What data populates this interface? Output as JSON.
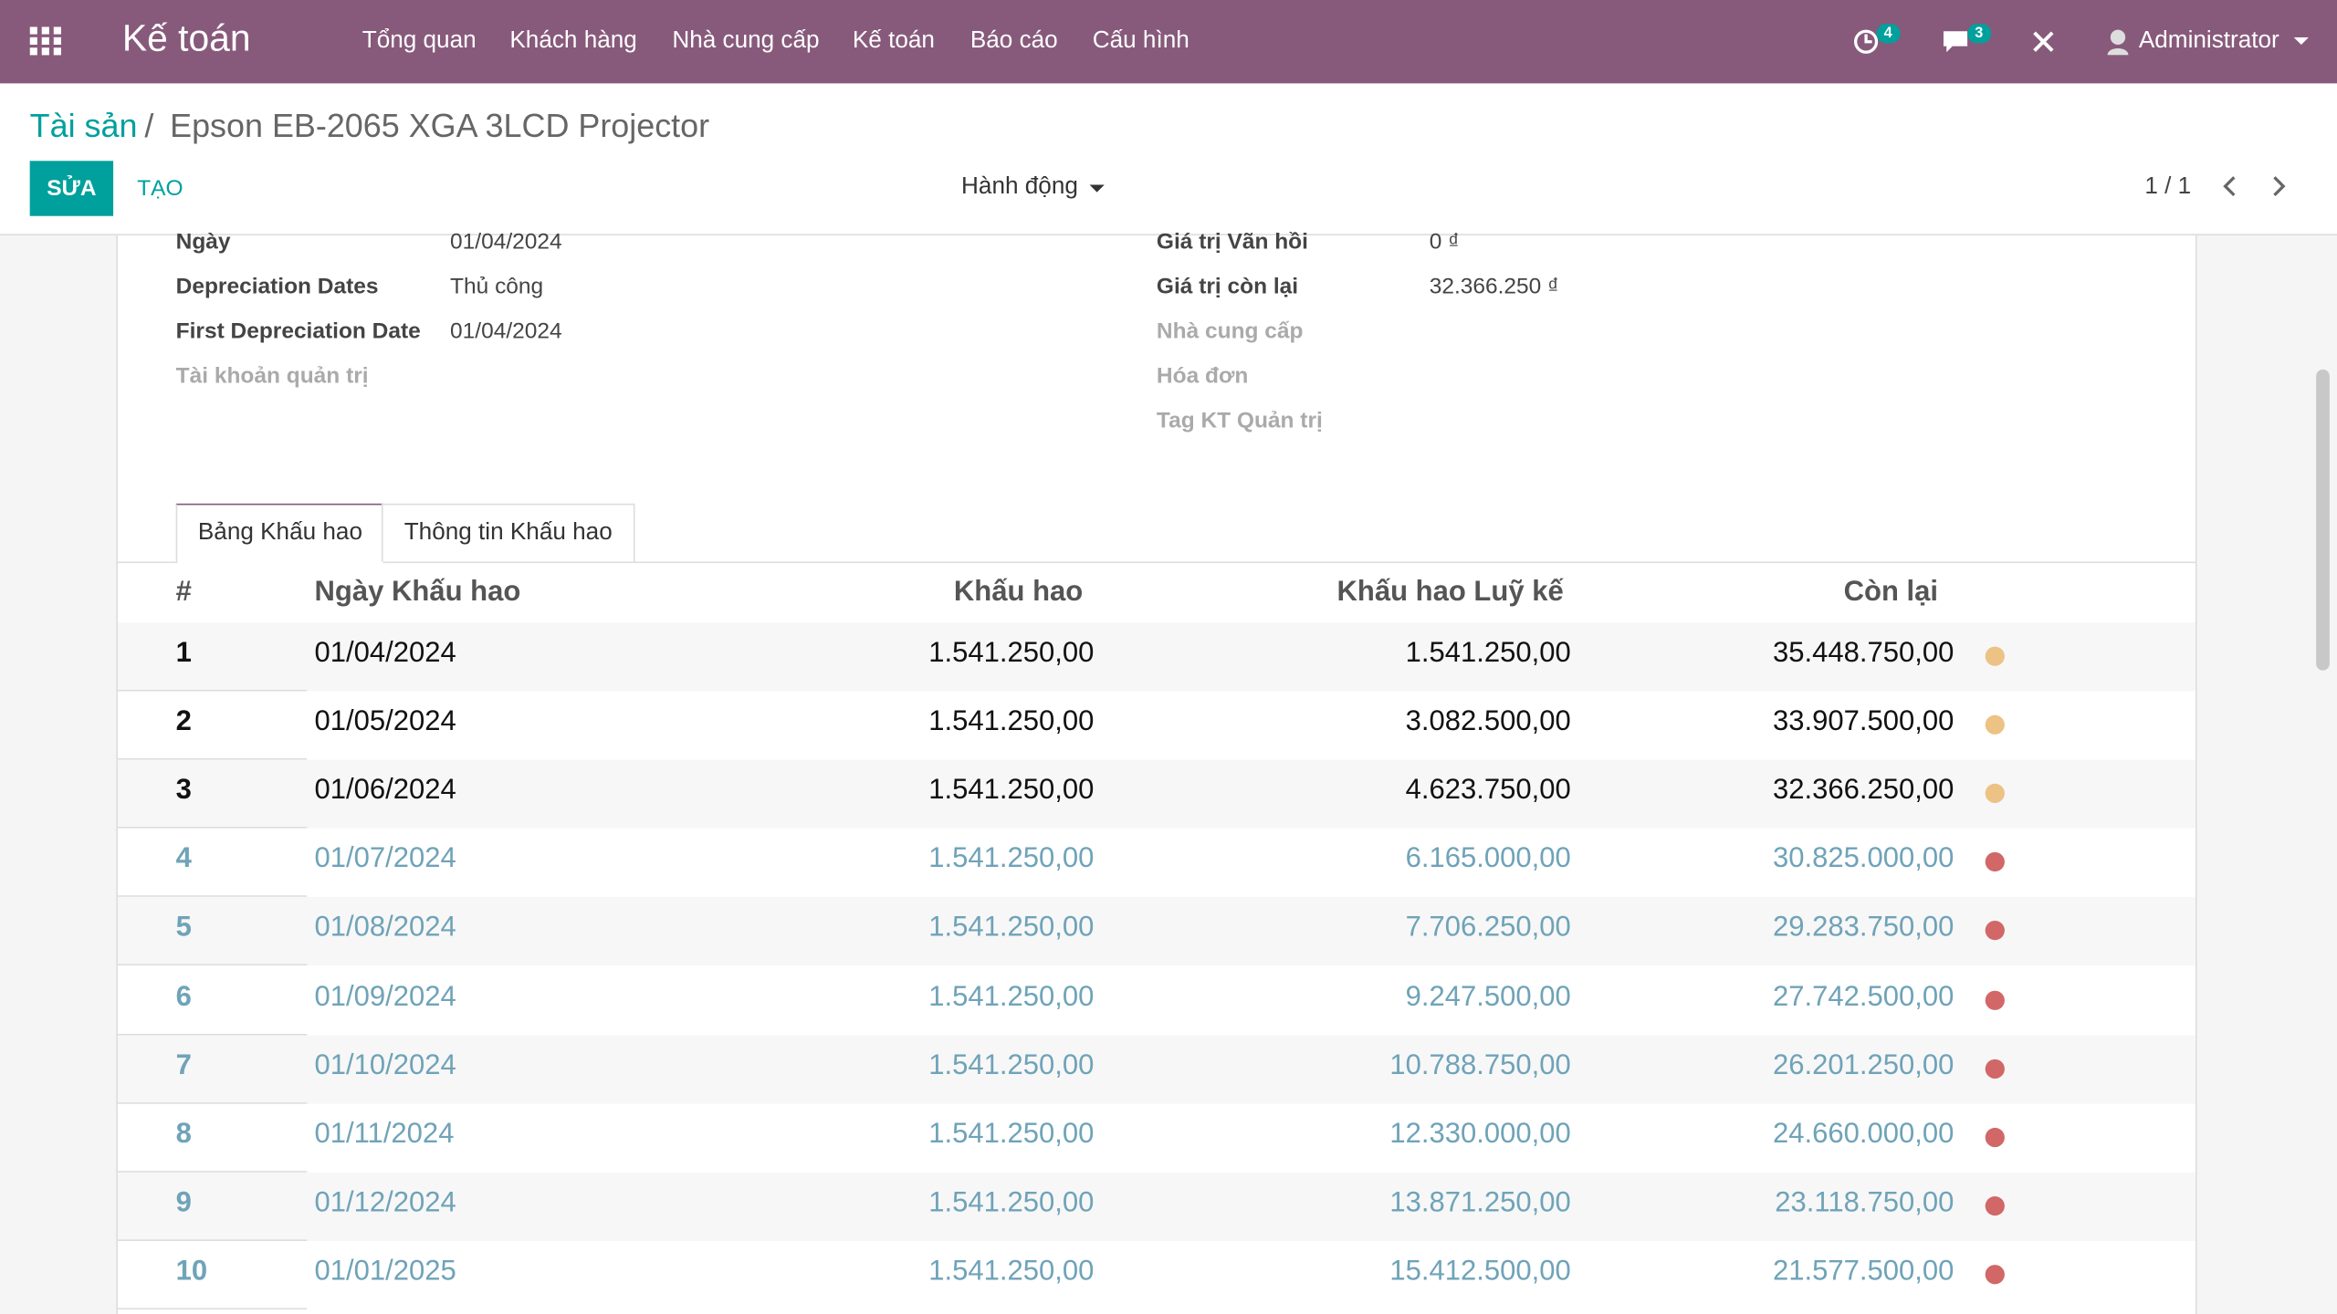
{
  "nav": {
    "app": "Kế toán",
    "menu": [
      "Tổng quan",
      "Khách hàng",
      "Nhà cung cấp",
      "Kế toán",
      "Báo cáo",
      "Cấu hình"
    ],
    "activity_badge": "4",
    "message_badge": "3",
    "user": "Administrator"
  },
  "breadcrumb": {
    "parent": "Tài sản",
    "current": "Epson EB-2065 XGA 3LCD Projector"
  },
  "buttons": {
    "edit": "SỬA",
    "create": "TẠO",
    "action": "Hành động",
    "pager": "1 / 1"
  },
  "form": {
    "left": [
      {
        "label": "Ngày",
        "value": "01/04/2024"
      },
      {
        "label": "Depreciation Dates",
        "value": "Thủ công"
      },
      {
        "label": "First Depreciation Date",
        "value": "01/04/2024"
      },
      {
        "label": "Tài khoản quản trị"
      }
    ],
    "right": [
      {
        "label": "Giá trị Vãn hồi",
        "value": "0 ₫"
      },
      {
        "label": "Giá trị còn lại",
        "value": "32.366.250 ₫"
      },
      {
        "label": "Nhà cung cấp"
      },
      {
        "label": "Hóa đơn"
      },
      {
        "label": "Tag KT Quản trị"
      }
    ]
  },
  "tabs": [
    "Bảng Khấu hao",
    "Thông tin Khấu hao"
  ],
  "table": {
    "headers": [
      "#",
      "Ngày Khấu hao",
      "Khấu hao",
      "Khấu hao Luỹ kế",
      "Còn lại"
    ],
    "rows": [
      {
        "cells": [
          "1",
          "01/04/2024",
          "1.541.250,00",
          "1.541.250,00",
          "35.448.750,00"
        ],
        "text_color": "#111111",
        "dot_color": "#ecc384"
      },
      {
        "cells": [
          "2",
          "01/05/2024",
          "1.541.250,00",
          "3.082.500,00",
          "33.907.500,00"
        ],
        "text_color": "#111111",
        "dot_color": "#ecc384"
      },
      {
        "cells": [
          "3",
          "01/06/2024",
          "1.541.250,00",
          "4.623.750,00",
          "32.366.250,00"
        ],
        "text_color": "#111111",
        "dot_color": "#ecc384"
      },
      {
        "cells": [
          "4",
          "01/07/2024",
          "1.541.250,00",
          "6.165.000,00",
          "30.825.000,00"
        ],
        "text_color": "#6fa3b8",
        "dot_color": "#d26767"
      },
      {
        "cells": [
          "5",
          "01/08/2024",
          "1.541.250,00",
          "7.706.250,00",
          "29.283.750,00"
        ],
        "text_color": "#6fa3b8",
        "dot_color": "#d26767"
      },
      {
        "cells": [
          "6",
          "01/09/2024",
          "1.541.250,00",
          "9.247.500,00",
          "27.742.500,00"
        ],
        "text_color": "#6fa3b8",
        "dot_color": "#d26767"
      },
      {
        "cells": [
          "7",
          "01/10/2024",
          "1.541.250,00",
          "10.788.750,00",
          "26.201.250,00"
        ],
        "text_color": "#6fa3b8",
        "dot_color": "#d26767"
      },
      {
        "cells": [
          "8",
          "01/11/2024",
          "1.541.250,00",
          "12.330.000,00",
          "24.660.000,00"
        ],
        "text_color": "#6fa3b8",
        "dot_color": "#d26767"
      },
      {
        "cells": [
          "9",
          "01/12/2024",
          "1.541.250,00",
          "13.871.250,00",
          "23.118.750,00"
        ],
        "text_color": "#6fa3b8",
        "dot_color": "#d26767"
      },
      {
        "cells": [
          "10",
          "01/01/2025",
          "1.541.250,00",
          "15.412.500,00",
          "21.577.500,00"
        ],
        "text_color": "#6fa3b8",
        "dot_color": "#d26767"
      }
    ]
  }
}
